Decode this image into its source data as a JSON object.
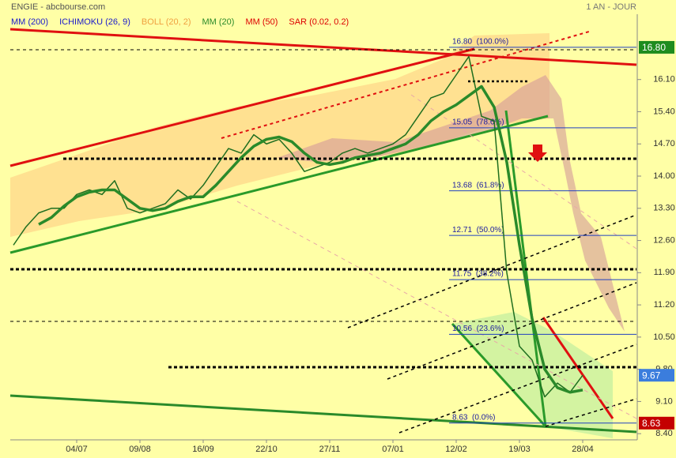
{
  "chart_data": {
    "type": "line",
    "title": "ENGIE - abcbourse.com",
    "period": "1 AN - JOUR",
    "indicators": [
      {
        "name": "MM (200)",
        "color": "#1a1acc"
      },
      {
        "name": "ICHIMOKU (26, 9)",
        "color": "#1a1acc"
      },
      {
        "name": "BOLL (20, 2)",
        "color": "#f0a040"
      },
      {
        "name": "MM (20)",
        "color": "#2a8a2a"
      },
      {
        "name": "MM (50)",
        "color": "#dd0000"
      },
      {
        "name": "SAR (0.02, 0.2)",
        "color": "#dd0000"
      }
    ],
    "categories": [
      null,
      null,
      null,
      null,
      null,
      "04/07",
      null,
      null,
      null,
      null,
      "09/08",
      null,
      null,
      null,
      null,
      "16/09",
      null,
      null,
      null,
      null,
      "22/10",
      null,
      null,
      null,
      null,
      "27/11",
      null,
      null,
      null,
      null,
      "07/01",
      null,
      null,
      null,
      null,
      "12/02",
      null,
      null,
      null,
      null,
      "19/03",
      null,
      null,
      null,
      null,
      "28/04"
    ],
    "series": [
      {
        "name": "ENGIE",
        "color": "#1f6e1f",
        "values": [
          12.5,
          12.9,
          13.2,
          13.3,
          13.3,
          13.6,
          13.7,
          13.6,
          13.9,
          13.3,
          13.2,
          13.3,
          13.4,
          13.7,
          13.5,
          13.8,
          14.2,
          14.6,
          14.5,
          14.9,
          14.7,
          14.8,
          14.5,
          14.1,
          14.2,
          14.3,
          14.5,
          14.6,
          14.5,
          14.6,
          14.7,
          14.9,
          15.3,
          15.7,
          15.8,
          16.2,
          16.6,
          15.3,
          15.2,
          11.9,
          10.3,
          10.0,
          9.2,
          9.5,
          9.3,
          9.67
        ]
      },
      {
        "name": "MM (20)",
        "color": "#2a8a2a",
        "values": [
          null,
          null,
          12.95,
          13.1,
          13.35,
          13.55,
          13.65,
          13.7,
          13.7,
          13.5,
          13.3,
          13.25,
          13.3,
          13.45,
          13.55,
          13.55,
          13.8,
          14.1,
          14.4,
          14.65,
          14.8,
          14.85,
          14.75,
          14.5,
          14.3,
          14.25,
          14.3,
          14.4,
          14.45,
          14.5,
          14.6,
          14.7,
          14.9,
          15.2,
          15.4,
          15.55,
          15.75,
          15.95,
          15.5,
          14.3,
          12.5,
          10.9,
          9.8,
          9.4,
          9.3,
          9.35
        ]
      }
    ],
    "ylim": [
      8.18,
      17.52
    ],
    "yticks": [
      {
        "value": 8.4,
        "label": "8.40"
      },
      {
        "value": 9.1,
        "label": "9.10"
      },
      {
        "value": 9.8,
        "label": "9.80"
      },
      {
        "value": 10.5,
        "label": "10.50"
      },
      {
        "value": 11.2,
        "label": "11.20"
      },
      {
        "value": 11.9,
        "label": "11.90"
      },
      {
        "value": 12.6,
        "label": "12.60"
      },
      {
        "value": 13.3,
        "label": "13.30"
      },
      {
        "value": 14.0,
        "label": "14.00"
      },
      {
        "value": 14.7,
        "label": "14.70"
      },
      {
        "value": 15.4,
        "label": "15.40"
      },
      {
        "value": 16.1,
        "label": "16.10"
      }
    ],
    "fibonacci": [
      {
        "value": 16.8,
        "label": "16.80  (100.0%)"
      },
      {
        "value": 15.05,
        "label": "15.05  (78.6%)"
      },
      {
        "value": 13.68,
        "label": "13.68  (61.8%)"
      },
      {
        "value": 12.71,
        "label": "12.71  (50.0%)"
      },
      {
        "value": 11.75,
        "label": "11.75  (38.2%)"
      },
      {
        "value": 10.56,
        "label": "10.56  (23.6%)"
      },
      {
        "value": 8.63,
        "label": "8.63  (0.0%)"
      }
    ],
    "price_markers": [
      {
        "value": 16.8,
        "label": "16.80",
        "color": "#1e8c1e"
      },
      {
        "value": 9.67,
        "color": "#3b7ddd"
      },
      {
        "value": 8.63,
        "color": "#c40000"
      }
    ]
  }
}
